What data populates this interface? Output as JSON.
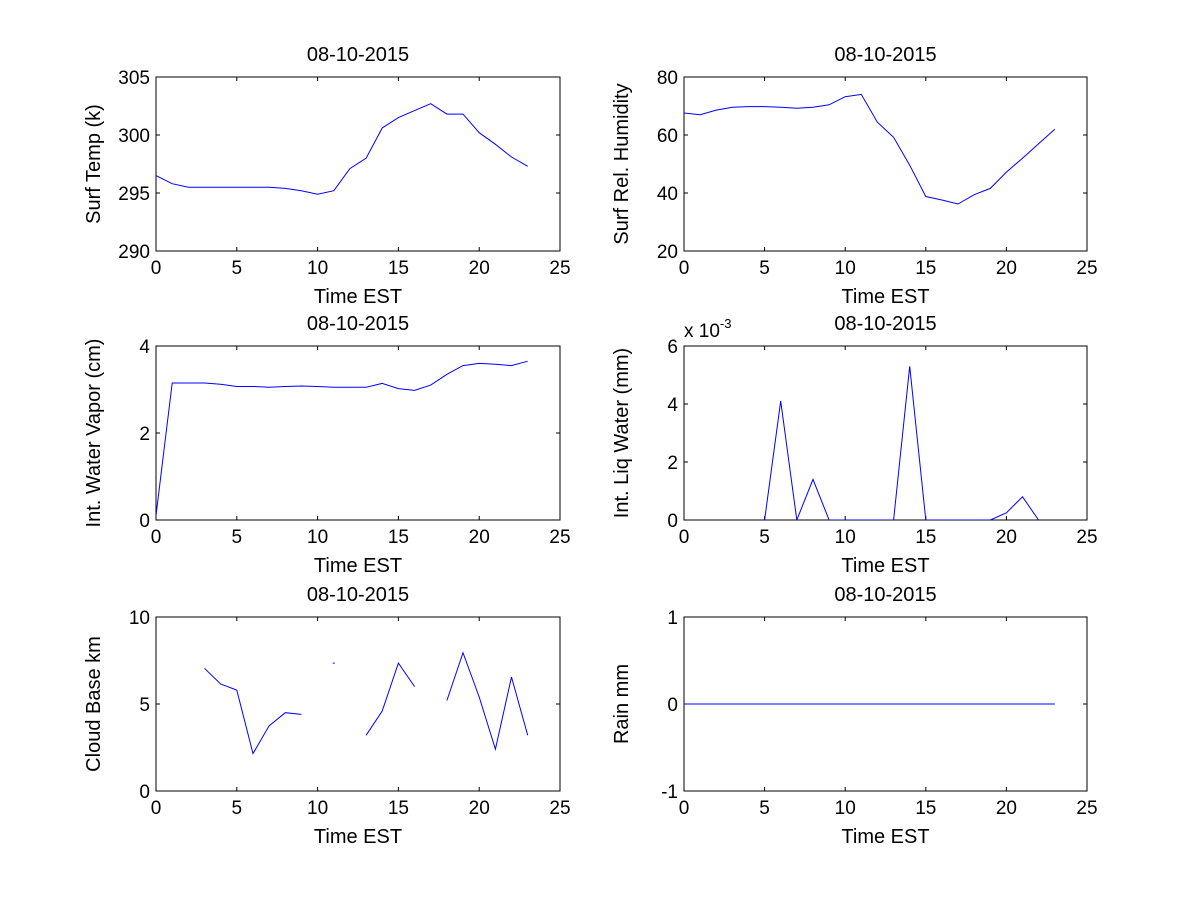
{
  "chart_data": [
    {
      "type": "line",
      "title": "08-10-2015",
      "xlabel": "Time EST",
      "ylabel": "Surf Temp (k)",
      "xlim": [
        0,
        25
      ],
      "ylim": [
        290,
        305
      ],
      "xticks": [
        0,
        5,
        10,
        15,
        20,
        25
      ],
      "yticks": [
        290,
        295,
        300,
        305
      ],
      "color": "#0000ff",
      "x": [
        0,
        1,
        2,
        3,
        4,
        5,
        6,
        7,
        8,
        9,
        10,
        11,
        12,
        13,
        14,
        15,
        16,
        17,
        18,
        19,
        20,
        21,
        22,
        23
      ],
      "y": [
        296.5,
        295.8,
        295.5,
        295.5,
        295.5,
        295.5,
        295.5,
        295.5,
        295.4,
        295.2,
        294.9,
        295.2,
        297.1,
        298.0,
        300.6,
        301.5,
        302.1,
        302.7,
        301.8,
        301.8,
        300.2,
        299.2,
        298.1,
        297.3
      ]
    },
    {
      "type": "line",
      "title": "08-10-2015",
      "xlabel": "Time EST",
      "ylabel": "Surf Rel. Humidity",
      "xlim": [
        0,
        25
      ],
      "ylim": [
        20,
        80
      ],
      "xticks": [
        0,
        5,
        10,
        15,
        20,
        25
      ],
      "yticks": [
        20,
        40,
        60,
        80
      ],
      "color": "#0000ff",
      "x": [
        0,
        1,
        2,
        3,
        4,
        5,
        6,
        7,
        8,
        9,
        10,
        11,
        12,
        13,
        14,
        15,
        16,
        17,
        18,
        19,
        20,
        21,
        22,
        23
      ],
      "y": [
        67.6,
        67.0,
        68.6,
        69.6,
        69.8,
        69.8,
        69.6,
        69.2,
        69.6,
        70.4,
        73.2,
        74.0,
        64.4,
        59.2,
        49.6,
        38.8,
        37.6,
        36.2,
        39.4,
        41.6,
        47.2,
        52.0,
        57.0,
        62.0
      ]
    },
    {
      "type": "line",
      "title": "08-10-2015",
      "xlabel": "Time EST",
      "ylabel": "Int. Water Vapor (cm)",
      "xlim": [
        0,
        25
      ],
      "ylim": [
        0,
        4
      ],
      "xticks": [
        0,
        5,
        10,
        15,
        20,
        25
      ],
      "yticks": [
        0,
        2,
        4
      ],
      "color": "#0000ff",
      "x": [
        0,
        1,
        2,
        3,
        4,
        5,
        6,
        7,
        8,
        9,
        10,
        11,
        12,
        13,
        14,
        15,
        16,
        17,
        18,
        19,
        20,
        21,
        22,
        23
      ],
      "y": [
        0.1,
        3.15,
        3.15,
        3.15,
        3.12,
        3.07,
        3.07,
        3.05,
        3.07,
        3.08,
        3.07,
        3.05,
        3.05,
        3.05,
        3.14,
        3.02,
        2.98,
        3.1,
        3.35,
        3.55,
        3.6,
        3.58,
        3.55,
        3.65
      ]
    },
    {
      "type": "line",
      "title": "08-10-2015",
      "xlabel": "Time EST",
      "ylabel": "Int. Liq Water (mm)",
      "exponent_prefix": "x 10",
      "exponent": "-3",
      "xlim": [
        0,
        25
      ],
      "ylim": [
        0,
        6
      ],
      "xticks": [
        0,
        5,
        10,
        15,
        20,
        25
      ],
      "yticks": [
        0,
        2,
        4,
        6
      ],
      "color": "#0000ff",
      "x": [
        5,
        6,
        7,
        8,
        9,
        10,
        11,
        12,
        13,
        14,
        15,
        16,
        17,
        18,
        19,
        20,
        21,
        22
      ],
      "y": [
        0,
        4.1,
        0,
        1.4,
        0,
        0,
        0,
        0,
        0,
        5.3,
        0,
        0,
        0,
        0,
        0,
        0.25,
        0.8,
        0
      ]
    },
    {
      "type": "line",
      "title": "08-10-2015",
      "xlabel": "Time EST",
      "ylabel": "Cloud Base km",
      "xlim": [
        0,
        25
      ],
      "ylim": [
        0,
        10
      ],
      "xticks": [
        0,
        5,
        10,
        15,
        20,
        25
      ],
      "yticks": [
        0,
        5,
        10
      ],
      "color": "#0000ff",
      "note": "null values are gaps (no cloud base)",
      "x": [
        3,
        4,
        5,
        6,
        7,
        8,
        9,
        10,
        11,
        12,
        13,
        14,
        15,
        16,
        17,
        18,
        19,
        20,
        21,
        22,
        23
      ],
      "y": [
        7.05,
        6.15,
        5.8,
        2.15,
        3.75,
        4.5,
        4.4,
        null,
        7.35,
        null,
        3.2,
        4.6,
        7.35,
        6.0,
        null,
        5.2,
        7.95,
        5.4,
        2.4,
        6.55,
        3.2
      ]
    },
    {
      "type": "line",
      "title": "08-10-2015",
      "xlabel": "Time EST",
      "ylabel": "Rain mm",
      "xlim": [
        0,
        25
      ],
      "ylim": [
        -1,
        1
      ],
      "xticks": [
        0,
        5,
        10,
        15,
        20,
        25
      ],
      "yticks": [
        -1,
        0,
        1
      ],
      "color": "#0000ff",
      "x": [
        0,
        1,
        2,
        3,
        4,
        5,
        6,
        7,
        8,
        9,
        10,
        11,
        12,
        13,
        14,
        15,
        16,
        17,
        18,
        19,
        20,
        21,
        22,
        23
      ],
      "y": [
        0,
        0,
        0,
        0,
        0,
        0,
        0,
        0,
        0,
        0,
        0,
        0,
        0,
        0,
        0,
        0,
        0,
        0,
        0,
        0,
        0,
        0,
        0,
        0
      ]
    }
  ]
}
